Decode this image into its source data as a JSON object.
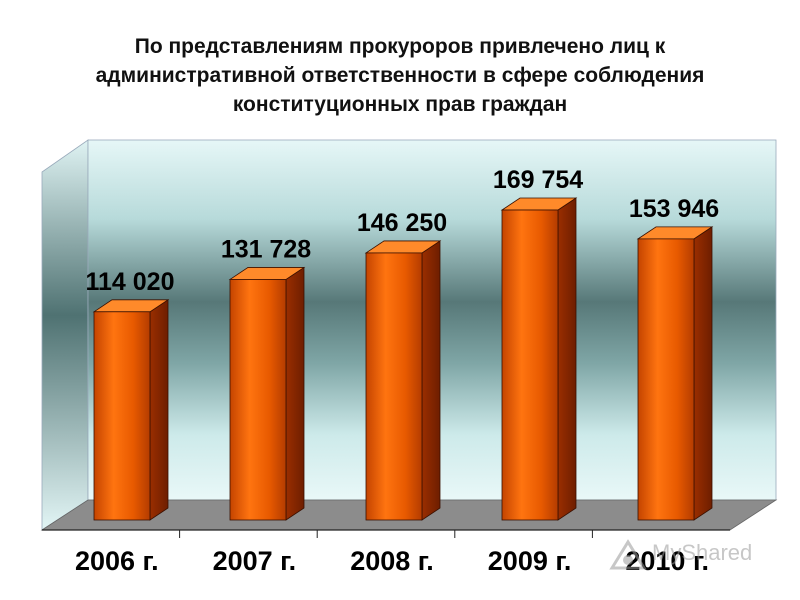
{
  "chart_data": {
    "type": "bar",
    "title": "По представлениям прокуроров привлечено лиц к административной ответственности в сфере соблюдения конституционных прав граждан",
    "categories": [
      "2006 г.",
      "2007 г.",
      "2008 г.",
      "2009 г.",
      "2010 г."
    ],
    "values": [
      114020,
      131728,
      146250,
      169754,
      153946
    ],
    "value_labels": [
      "114 020",
      "131 728",
      "146 250",
      "169 754",
      "153 946"
    ],
    "xlabel": "",
    "ylabel": "",
    "ylim": [
      0,
      230000
    ],
    "grid": false,
    "legend": "none",
    "style": "3d-columns",
    "colors": {
      "bar_front": "#e85a00",
      "bar_side": "#8a2600",
      "bar_top": "#ff8a2a",
      "wall_top": "#d8f2f2",
      "wall_mid": "#4e7070",
      "floor": "#8a8a8a"
    }
  },
  "watermark": {
    "text": "MyShared",
    "icon": "myshared-logo-icon"
  }
}
